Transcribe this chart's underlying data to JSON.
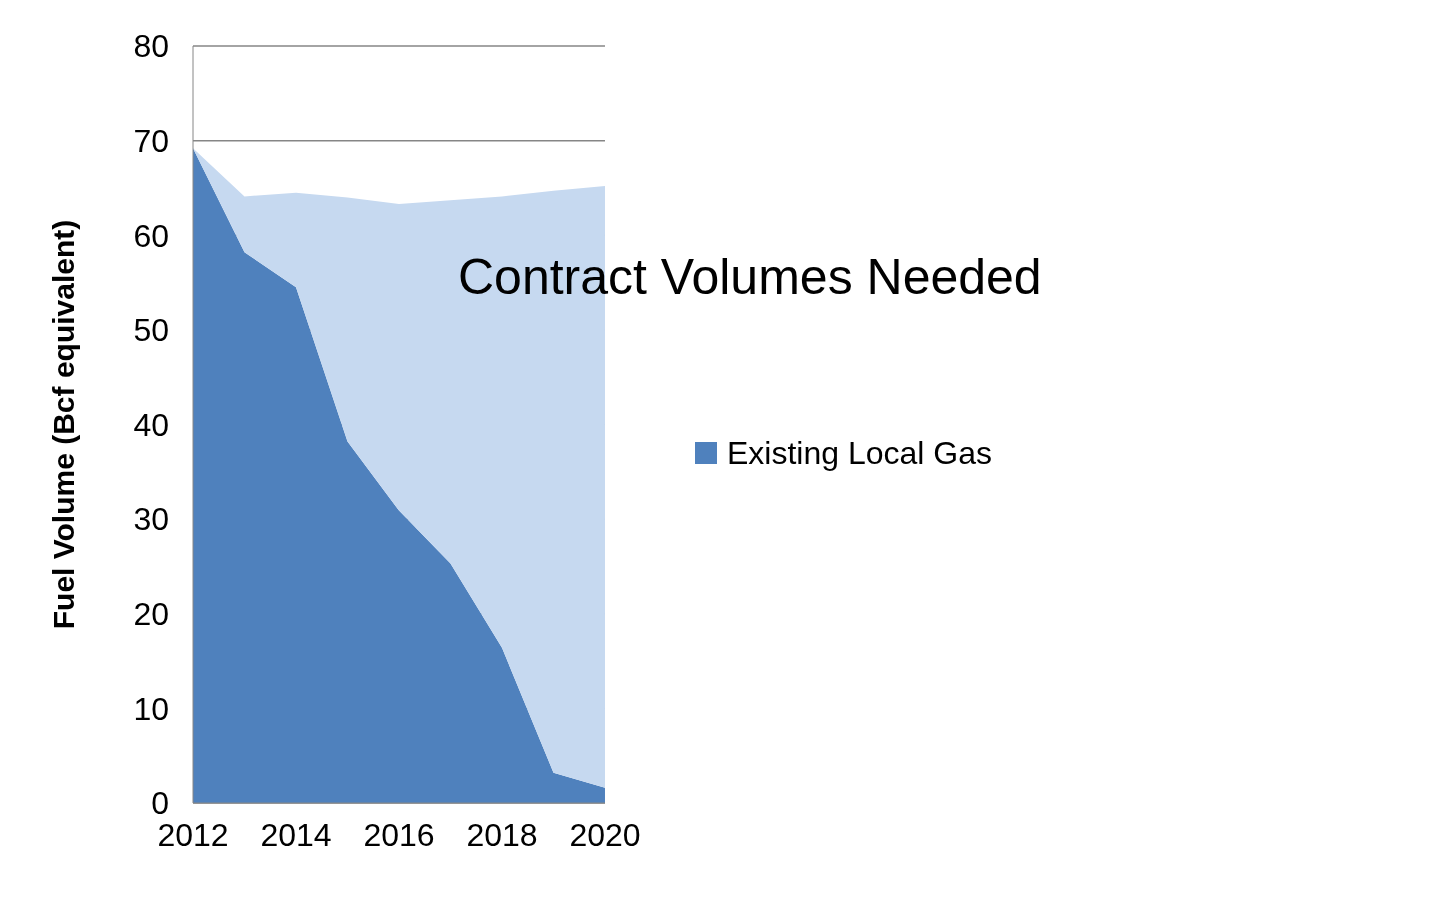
{
  "chart_data": {
    "type": "area",
    "stacked": true,
    "ylabel": "Fuel Volume (Bcf equivalent)",
    "x": [
      2012,
      2013,
      2014,
      2015,
      2016,
      2017,
      2018,
      2019,
      2020
    ],
    "series": [
      {
        "name": "Existing Local Gas",
        "color": "#4f81bd",
        "values": [
          69.2,
          58.2,
          54.5,
          38.2,
          30.9,
          25.3,
          16.4,
          3.2,
          1.6
        ]
      },
      {
        "color": "#c6d9f0",
        "values": [
          0,
          5.9,
          10.0,
          25.8,
          32.4,
          38.4,
          47.7,
          61.5,
          63.6
        ]
      }
    ],
    "annotations": [
      "Contract Volumes Needed"
    ],
    "xlim": [
      2012,
      2020
    ],
    "xticks": [
      2012,
      2014,
      2016,
      2018,
      2020
    ],
    "ylim": [
      0,
      80
    ],
    "yticks": [
      0,
      10,
      20,
      30,
      40,
      50,
      60,
      70,
      80
    ],
    "grid": "y",
    "legend": "right"
  }
}
